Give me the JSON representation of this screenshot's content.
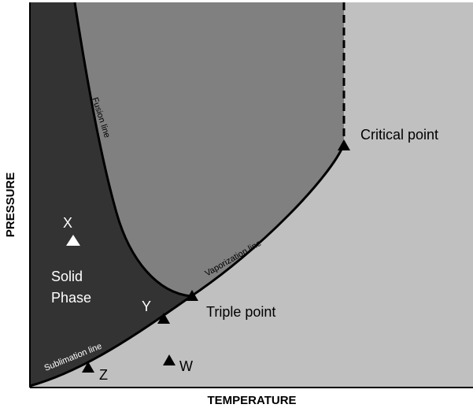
{
  "axes": {
    "x_label": "TEMPERATURE",
    "y_label": "PRESSURE"
  },
  "regions": {
    "solid": {
      "label_line1": "Solid",
      "label_line2": "Phase",
      "color": "#333333"
    },
    "liquid": {
      "color": "#808080"
    },
    "gas": {
      "color": "#c0c0c0"
    }
  },
  "lines": {
    "fusion": "Fusion line",
    "vaporization": "Vaporization line",
    "sublimation": "Sublimation line"
  },
  "special_points": {
    "triple": "Triple point",
    "critical": "Critical point"
  },
  "markers": {
    "x": "X",
    "y": "Y",
    "z": "Z",
    "w": "W"
  }
}
